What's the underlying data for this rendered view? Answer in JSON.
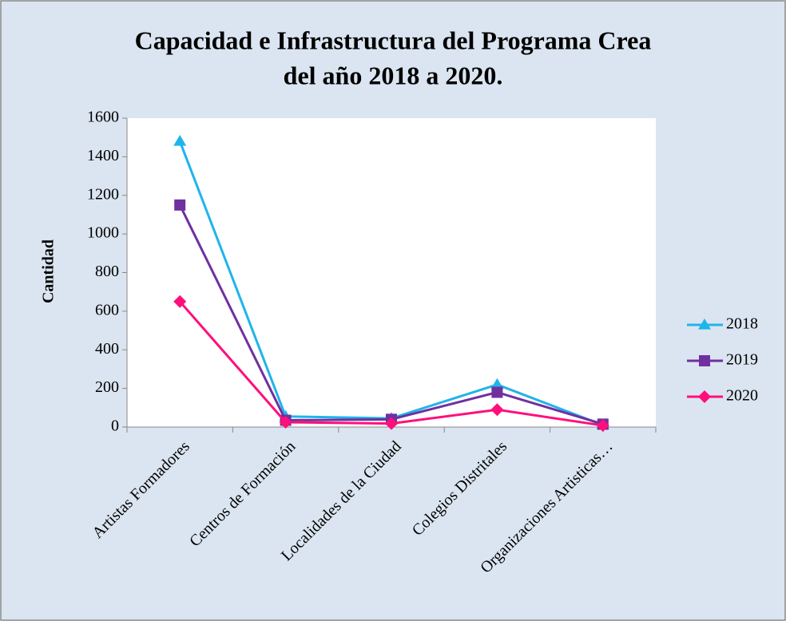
{
  "chart_data": {
    "type": "line",
    "title": [
      "Capacidad e Infrastructura  del Programa Crea",
      "del año 2018 a 2020."
    ],
    "y_label": "Cantidad",
    "categories": [
      "Artistas Formadores",
      "Centros de Formación",
      "Localidades de la Ciudad",
      "Colegios Distritales",
      "Organizaciones Artisticas…"
    ],
    "series": [
      {
        "name": "2018",
        "color": "#1fb4ea",
        "marker": "triangle",
        "values": [
          1480,
          55,
          45,
          220,
          10
        ]
      },
      {
        "name": "2019",
        "color": "#7030a0",
        "marker": "square",
        "values": [
          1150,
          35,
          40,
          180,
          15
        ]
      },
      {
        "name": "2020",
        "color": "#ff0f7b",
        "marker": "diamond",
        "values": [
          650,
          25,
          18,
          90,
          8
        ]
      }
    ],
    "ylim": [
      0,
      1600
    ],
    "yticks": [
      0,
      200,
      400,
      600,
      800,
      1000,
      1200,
      1400,
      1600
    ],
    "grid": false,
    "legend": "right"
  }
}
